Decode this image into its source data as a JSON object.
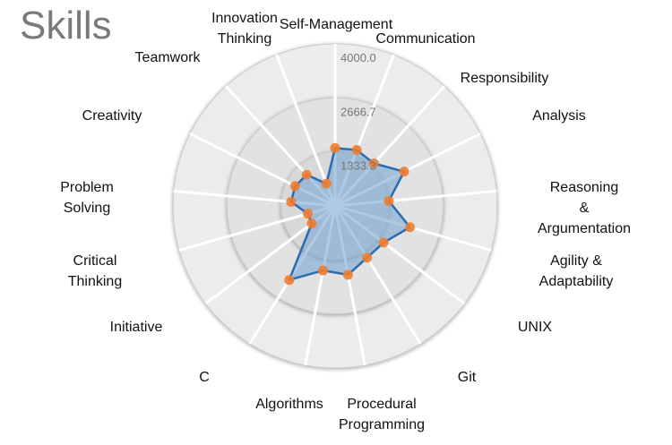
{
  "chart_data": {
    "type": "radar",
    "title": "Skills",
    "rmax": 4000,
    "ticks": [
      "4000.0",
      "2666.7",
      "1333.3"
    ],
    "categories": [
      "Self-Management",
      "Communication",
      "Responsibility",
      "Analysis",
      "Reasoning\n&\nArgumentation",
      "Agility &\nAdaptability",
      "UNIX",
      "Git",
      "Procedural\nProgramming",
      "Algorithms",
      "C",
      "Initiative",
      "Critical\nThinking",
      "Problem\nSolving",
      "Creativity",
      "Teamwork",
      "Innovation\nThinking"
    ],
    "values": [
      1430,
      1480,
      1420,
      1900,
      1330,
      1920,
      1500,
      1500,
      1730,
      1620,
      2150,
      720,
      700,
      1090,
      1100,
      1040,
      590
    ],
    "colors": {
      "line": "#2b6cb0",
      "fill": "#7aa6d4",
      "point": "#ed7d31"
    },
    "grid": true
  }
}
